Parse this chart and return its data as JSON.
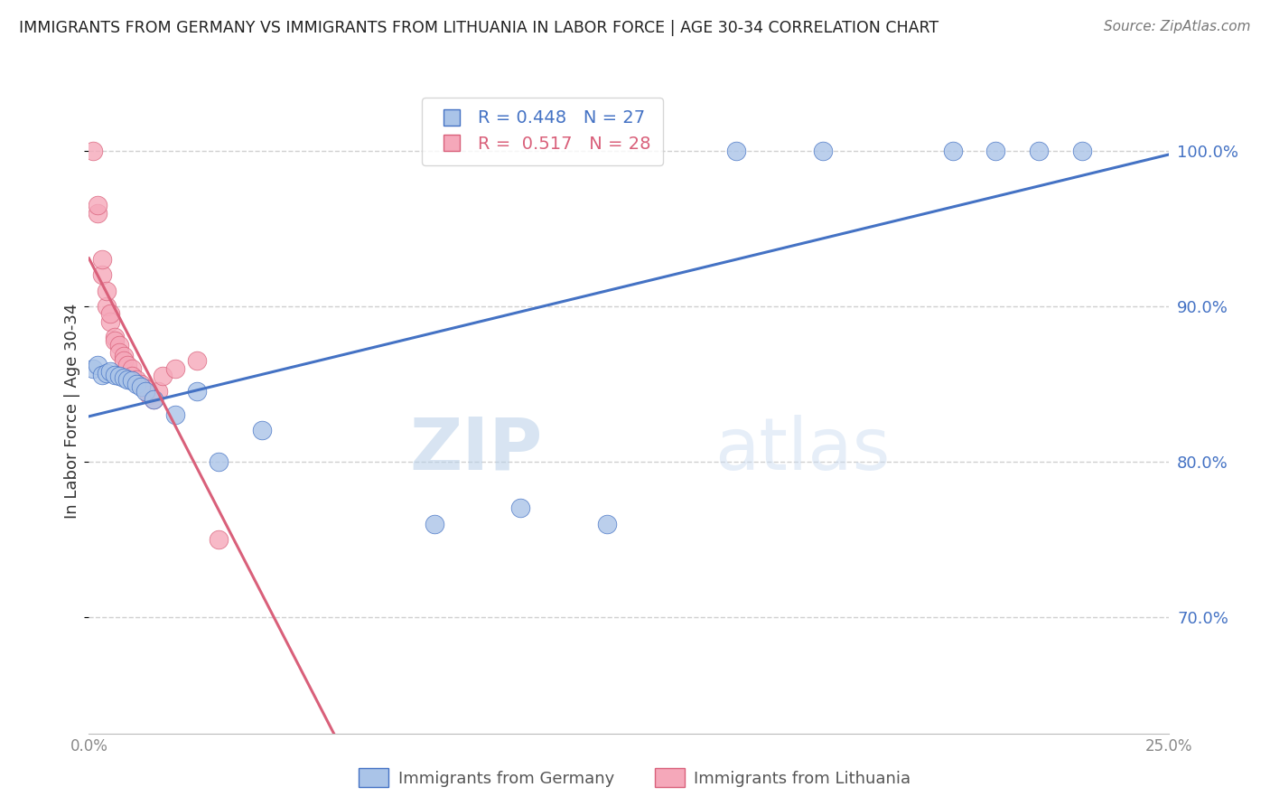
{
  "title": "IMMIGRANTS FROM GERMANY VS IMMIGRANTS FROM LITHUANIA IN LABOR FORCE | AGE 30-34 CORRELATION CHART",
  "source": "Source: ZipAtlas.com",
  "ylabel": "In Labor Force | Age 30-34",
  "xlim": [
    0.0,
    0.25
  ],
  "ylim": [
    0.625,
    1.04
  ],
  "y_ticks": [
    0.7,
    0.8,
    0.9,
    1.0
  ],
  "germany_color": "#aac4e8",
  "lithuania_color": "#f5a8ba",
  "germany_line_color": "#4472c4",
  "lithuania_line_color": "#d9607a",
  "germany_R": 0.448,
  "germany_N": 27,
  "lithuania_R": 0.517,
  "lithuania_N": 28,
  "germany_x": [
    0.001,
    0.002,
    0.003,
    0.004,
    0.005,
    0.006,
    0.007,
    0.008,
    0.009,
    0.01,
    0.011,
    0.012,
    0.013,
    0.015,
    0.02,
    0.025,
    0.03,
    0.04,
    0.08,
    0.1,
    0.12,
    0.15,
    0.17,
    0.2,
    0.21,
    0.22,
    0.23
  ],
  "germany_y": [
    0.86,
    0.862,
    0.856,
    0.857,
    0.858,
    0.856,
    0.855,
    0.854,
    0.853,
    0.852,
    0.85,
    0.848,
    0.845,
    0.84,
    0.83,
    0.845,
    0.8,
    0.82,
    0.76,
    0.77,
    0.76,
    1.0,
    1.0,
    1.0,
    1.0,
    1.0,
    1.0
  ],
  "lithuania_x": [
    0.001,
    0.002,
    0.002,
    0.003,
    0.003,
    0.004,
    0.004,
    0.005,
    0.005,
    0.006,
    0.006,
    0.007,
    0.007,
    0.008,
    0.008,
    0.009,
    0.01,
    0.01,
    0.011,
    0.012,
    0.013,
    0.014,
    0.015,
    0.016,
    0.017,
    0.02,
    0.025,
    0.03
  ],
  "lithuania_y": [
    1.0,
    0.96,
    0.965,
    0.92,
    0.93,
    0.9,
    0.91,
    0.89,
    0.895,
    0.88,
    0.878,
    0.875,
    0.87,
    0.868,
    0.865,
    0.862,
    0.86,
    0.855,
    0.853,
    0.85,
    0.847,
    0.843,
    0.84,
    0.845,
    0.855,
    0.86,
    0.865,
    0.75
  ],
  "watermark_zip": "ZIP",
  "watermark_atlas": "atlas",
  "background_color": "#ffffff",
  "grid_color": "#d0d0d0"
}
